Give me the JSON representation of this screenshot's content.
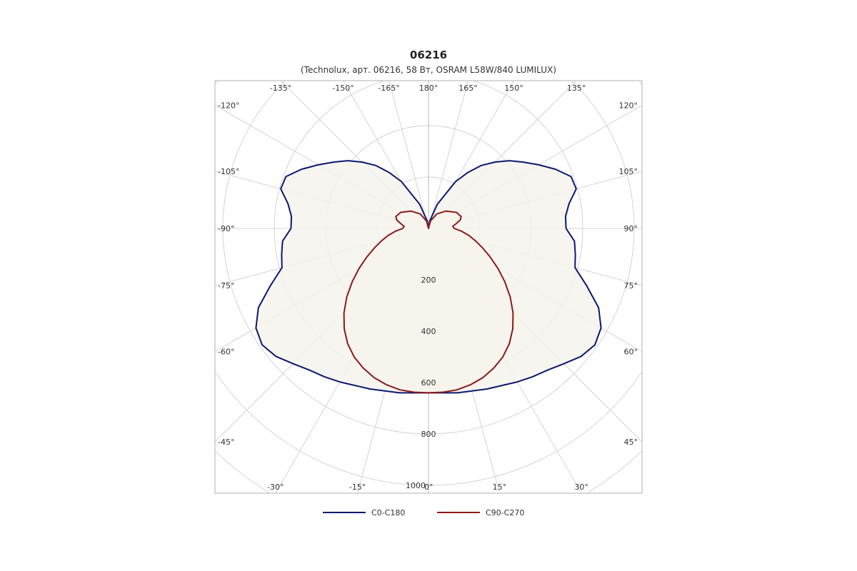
{
  "chart_data": {
    "type": "polar-line",
    "title": "06216",
    "subtitle": "(Technolux, арт. 06216, 58 Вт, OSRAM L58W/840 LUMILUX)",
    "radial_ticks": [
      200,
      400,
      600,
      800,
      1000
    ],
    "radial_tick_labels": [
      "200",
      "400",
      "600",
      "800",
      "1000"
    ],
    "r_max": 1000,
    "angle_labels": [
      {
        "label": "180°",
        "angle": 180
      },
      {
        "label": "165°",
        "angle": 165
      },
      {
        "label": "150°",
        "angle": 150
      },
      {
        "label": "135°",
        "angle": 135
      },
      {
        "label": "120°",
        "angle": 120
      },
      {
        "label": "105°",
        "angle": 105
      },
      {
        "label": "90°",
        "angle": 90
      },
      {
        "label": "75°",
        "angle": 75
      },
      {
        "label": "60°",
        "angle": 60
      },
      {
        "label": "45°",
        "angle": 45
      },
      {
        "label": "30°",
        "angle": 30
      },
      {
        "label": "15°",
        "angle": 15
      },
      {
        "label": "0°",
        "angle": 0
      },
      {
        "label": "-15°",
        "angle": -15
      },
      {
        "label": "-30°",
        "angle": -30
      },
      {
        "label": "-45°",
        "angle": -45
      },
      {
        "label": "-60°",
        "angle": -60
      },
      {
        "label": "-75°",
        "angle": -75
      },
      {
        "label": "-90°",
        "angle": -90
      },
      {
        "label": "-105°",
        "angle": -105
      },
      {
        "label": "-120°",
        "angle": -120
      },
      {
        "label": "-135°",
        "angle": -135
      },
      {
        "label": "-150°",
        "angle": -150
      },
      {
        "label": "-165°",
        "angle": -165
      }
    ],
    "series": [
      {
        "name": "C0-C180",
        "color": "#0a1a6e",
        "angles": [
          0,
          10,
          20,
          30,
          35,
          40,
          45,
          50,
          55,
          60,
          65,
          70,
          75,
          80,
          85,
          90,
          95,
          100,
          105,
          110,
          115,
          120,
          125,
          130,
          135,
          140,
          145,
          150,
          160,
          170,
          180
        ],
        "values": [
          640,
          650,
          665,
          690,
          705,
          720,
          745,
          775,
          790,
          775,
          730,
          655,
          590,
          580,
          570,
          535,
          535,
          555,
          595,
          590,
          545,
          495,
          450,
          410,
          365,
          320,
          265,
          210,
          100,
          30,
          0
        ]
      },
      {
        "name": "C90-C270",
        "color": "#8b1a1a",
        "angles": [
          0,
          5,
          10,
          15,
          20,
          25,
          30,
          35,
          40,
          45,
          50,
          55,
          60,
          65,
          70,
          75,
          80,
          85,
          90,
          95,
          100,
          105,
          110,
          120,
          135,
          150,
          165,
          180
        ],
        "values": [
          640,
          640,
          638,
          630,
          618,
          600,
          578,
          548,
          510,
          465,
          415,
          362,
          312,
          265,
          225,
          190,
          160,
          130,
          100,
          95,
          110,
          128,
          135,
          125,
          95,
          65,
          30,
          0
        ]
      }
    ],
    "legend": [
      {
        "label": "C0-C180",
        "color": "#0a1a6e"
      },
      {
        "label": "C90-C270",
        "color": "#8b1a1a"
      }
    ],
    "grid": true,
    "legend_position": "bottom"
  }
}
